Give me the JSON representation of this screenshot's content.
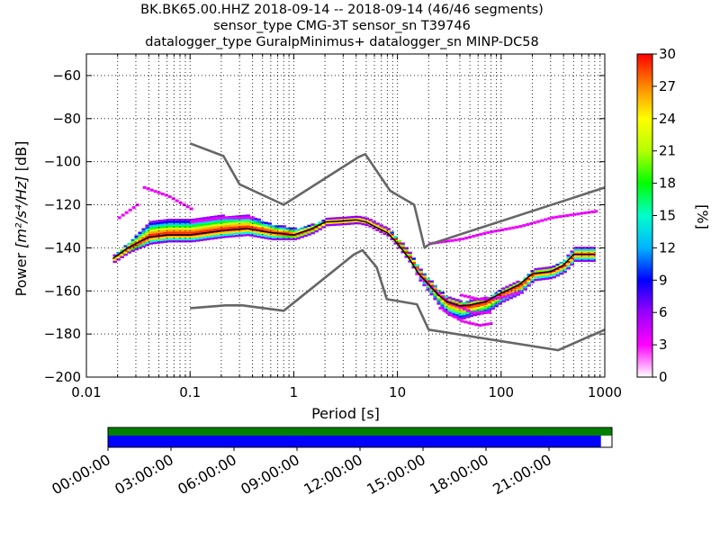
{
  "title": {
    "line1": "BK.BK65.00.HHZ   2018-09-14 -- 2018-09-14  (46/46 segments)",
    "line2": "sensor_type CMG-3T sensor_sn T39746",
    "line3": "datalogger_type GuralpMinimus+ datalogger_sn MINP-DC58"
  },
  "colorbar": {
    "label": "[%]",
    "ticks": [
      0,
      3,
      6,
      9,
      12,
      15,
      18,
      21,
      24,
      27,
      30
    ],
    "range": [
      0,
      30
    ],
    "colors": [
      "#ffffff",
      "#ff00ff",
      "#9a00ff",
      "#0000ff",
      "#00b4ff",
      "#00ffcc",
      "#00ff00",
      "#b4ff00",
      "#ffff00",
      "#ff8800",
      "#ff0000"
    ]
  },
  "timeline": {
    "tick_labels": [
      "00:00:00",
      "03:00:00",
      "06:00:00",
      "09:00:00",
      "12:00:00",
      "15:00:00",
      "18:00:00",
      "21:00:00"
    ],
    "data_coverage_color": "#008000",
    "psd_coverage_color": "#0000ff",
    "psd_coverage_fraction": 0.978
  },
  "chart_data": {
    "type": "heatmap",
    "xlabel": "Period [s]",
    "ylabel_prefix": "Power ",
    "ylabel_units": "[m²/s⁴/Hz]",
    "ylabel_suffix": " [dB]",
    "xscale": "log",
    "xlim": [
      0.01,
      1000
    ],
    "ylim": [
      -200,
      -50
    ],
    "xticks": [
      0.01,
      0.1,
      1,
      10,
      100,
      1000
    ],
    "xtick_labels": [
      "0.01",
      "0.1",
      "1",
      "10",
      "100",
      "1000"
    ],
    "yticks": [
      -200,
      -180,
      -160,
      -140,
      -120,
      -100,
      -80,
      -60
    ],
    "ytick_labels": [
      "−200",
      "−180",
      "−160",
      "−140",
      "−120",
      "−100",
      "−80",
      "−60"
    ],
    "grid": true,
    "nhnm": {
      "x": [
        0.1,
        0.22,
        0.32,
        0.8,
        3.8,
        4.6,
        6.3,
        7.9,
        15.4,
        20,
        354.8,
        1000
      ],
      "y": [
        -168,
        -166.7,
        -166.7,
        -169.2,
        -143.1,
        -141.1,
        -149,
        -163.8,
        -166.2,
        -178,
        -187.5,
        -178
      ]
    },
    "nlnm": {
      "x": [
        0.1,
        0.21,
        0.3,
        0.8,
        4.2,
        4.9,
        8.5,
        14.5,
        18.3,
        20,
        1000
      ],
      "y": [
        -91.5,
        -97.4,
        -110.5,
        -120,
        -97.9,
        -96.5,
        -113.5,
        -120,
        -140,
        -138.5,
        -112
      ]
    },
    "mode": {
      "x": [
        0.018,
        0.025,
        0.04,
        0.06,
        0.1,
        0.2,
        0.35,
        0.6,
        1,
        1.5,
        2,
        3,
        4,
        5,
        6,
        8,
        10,
        13,
        16,
        20,
        25,
        30,
        40,
        50,
        70,
        100,
        150,
        200,
        300,
        400,
        500,
        800
      ],
      "y": [
        -145,
        -140,
        -135,
        -134,
        -134,
        -132,
        -131,
        -133,
        -134,
        -131,
        -128,
        -127.5,
        -127,
        -128,
        -130,
        -133,
        -138,
        -145,
        -152,
        -157,
        -162,
        -165,
        -167,
        -166.5,
        -165,
        -161,
        -157,
        -152,
        -151,
        -148,
        -143,
        -143
      ]
    },
    "spread": {
      "x": [
        0.018,
        0.025,
        0.04,
        0.06,
        0.1,
        0.2,
        0.35,
        0.6,
        1,
        1.5,
        2,
        3,
        4,
        5,
        6,
        8,
        10,
        13,
        16,
        20,
        25,
        30,
        40,
        50,
        70,
        100,
        150,
        200,
        300,
        400,
        500,
        800
      ],
      "up": [
        1.5,
        3,
        7,
        7,
        7,
        7,
        6,
        4,
        3,
        2,
        1.5,
        1.5,
        1.5,
        1.5,
        1.5,
        1.5,
        2,
        2,
        2,
        2,
        2,
        2,
        2,
        2,
        2,
        2,
        2,
        2,
        2,
        3,
        3,
        3
      ],
      "down": [
        1.5,
        2,
        3,
        3,
        3,
        3,
        3,
        3,
        2,
        2,
        1.5,
        1.5,
        1.5,
        1.5,
        1.5,
        1.5,
        2,
        2,
        3,
        4,
        5,
        6,
        6,
        5,
        5,
        4,
        4,
        3,
        3,
        3,
        3,
        3
      ]
    },
    "outliers": [
      {
        "x": [
          0.02,
          0.03
        ],
        "y": [
          -126,
          -120
        ]
      },
      {
        "x": [
          0.035,
          0.06,
          0.1
        ],
        "y": [
          -112,
          -116,
          -122
        ]
      },
      {
        "x": [
          0.1,
          0.2,
          0.4
        ],
        "y": [
          -128,
          -126,
          -126
        ]
      },
      {
        "x": [
          15,
          20,
          30,
          50,
          80
        ],
        "y": [
          -152,
          -158,
          -165,
          -170,
          -170
        ]
      },
      {
        "x": [
          25,
          40,
          60,
          80
        ],
        "y": [
          -168,
          -174,
          -176,
          -175
        ]
      },
      {
        "x": [
          20,
          40,
          70,
          150,
          300,
          800
        ],
        "y": [
          -138,
          -136,
          -133,
          -130,
          -126,
          -123
        ]
      },
      {
        "x": [
          40,
          60,
          100,
          150
        ],
        "y": [
          -162,
          -164,
          -163,
          -160
        ]
      }
    ]
  }
}
